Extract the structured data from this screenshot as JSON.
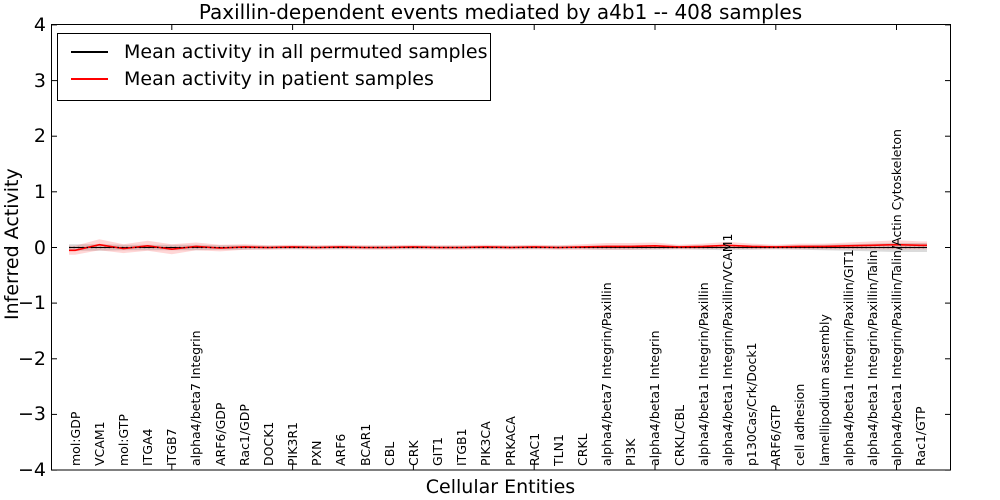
{
  "title": "Paxillin-dependent events mediated by a4b1 -- 408 samples",
  "axes": {
    "xlabel": "Cellular Entities",
    "ylabel": "Inferred Activity",
    "ytick_labels": [
      "4",
      "3",
      "2",
      "1",
      "0",
      "−1",
      "−2",
      "−3",
      "−4"
    ]
  },
  "legend": {
    "items": [
      {
        "label": "Mean activity in all permuted samples",
        "color": "#000000"
      },
      {
        "label": "Mean activity in patient samples",
        "color": "#ff0000"
      }
    ]
  },
  "chart_data": {
    "type": "line",
    "title": "Paxillin-dependent events mediated by a4b1 -- 408 samples",
    "xlabel": "Cellular Entities",
    "ylabel": "Inferred Activity",
    "ylim": [
      -4,
      4
    ],
    "yticks": [
      4,
      3,
      2,
      1,
      0,
      -1,
      -2,
      -3,
      -4
    ],
    "xtick_positions": [
      5,
      10,
      15,
      20,
      25,
      30,
      35
    ],
    "grid": false,
    "legend_position": "upper left",
    "zero_line_style": "dotted",
    "categories": [
      "mol:GDP",
      "VCAM1",
      "mol:GTP",
      "ITGA4",
      "ITGB7",
      "alpha4/beta7 Integrin",
      "ARF6/GDP",
      "Rac1/GDP",
      "DOCK1",
      "PIK3R1",
      "PXN",
      "ARF6",
      "BCAR1",
      "CBL",
      "CRK",
      "GIT1",
      "ITGB1",
      "PIK3CA",
      "PRKACA",
      "RAC1",
      "TLN1",
      "CRKL",
      "alpha4/beta7 Integrin/Paxillin",
      "PI3K",
      "alpha4/beta1 Integrin",
      "CRKL/CBL",
      "alpha4/beta1 Integrin/Paxillin",
      "alpha4/beta1 Integrin/Paxillin/VCAM1",
      "p130Cas/Crk/Dock1",
      "ARF6/GTP",
      "cell adhesion",
      "lamellipodium assembly",
      "alpha4/beta1 Integrin/Paxillin/GIT1",
      "alpha4/beta1 Integrin/Paxillin/Talin",
      "alpha4/beta1 Integrin/Paxillin/Talin/Actin Cytoskeleton",
      "Rac1/GTP"
    ],
    "series": [
      {
        "name": "Mean activity in all permuted samples",
        "color": "#000000",
        "band_color": "rgba(125,125,125,0.28)",
        "values": [
          0,
          0,
          0,
          0,
          0,
          0,
          0,
          0,
          0,
          0,
          0,
          0,
          0,
          0,
          0,
          0,
          0,
          0,
          0,
          0,
          0,
          0,
          0,
          0,
          0,
          0,
          0,
          0,
          0,
          0,
          0,
          0,
          0,
          0,
          0,
          0
        ],
        "band_halfwidth": [
          0.06,
          0.06,
          0.05,
          0.05,
          0.05,
          0.05,
          0.04,
          0.04,
          0.03,
          0.03,
          0.03,
          0.03,
          0.03,
          0.03,
          0.03,
          0.03,
          0.03,
          0.03,
          0.03,
          0.03,
          0.03,
          0.03,
          0.04,
          0.04,
          0.04,
          0.03,
          0.04,
          0.05,
          0.04,
          0.03,
          0.04,
          0.05,
          0.06,
          0.07,
          0.08,
          0.08
        ]
      },
      {
        "name": "Mean activity in patient samples",
        "color": "#ff0000",
        "band_color": "rgba(255,0,0,0.16)",
        "values": [
          -0.05,
          0.05,
          -0.02,
          0.03,
          -0.03,
          0.02,
          -0.01,
          0.01,
          0,
          0.01,
          0,
          0.01,
          0,
          0,
          0.01,
          0,
          0,
          0.01,
          0,
          0.01,
          0,
          0.01,
          0.02,
          0.02,
          0.03,
          0.01,
          0.02,
          0.04,
          0.02,
          0.01,
          0.02,
          0.02,
          0.03,
          0.04,
          0.05,
          0.04
        ],
        "band_halfwidth": [
          0.08,
          0.1,
          0.08,
          0.09,
          0.09,
          0.07,
          0.06,
          0.05,
          0.04,
          0.04,
          0.04,
          0.04,
          0.04,
          0.04,
          0.04,
          0.04,
          0.04,
          0.04,
          0.04,
          0.04,
          0.04,
          0.05,
          0.06,
          0.06,
          0.06,
          0.04,
          0.05,
          0.06,
          0.05,
          0.04,
          0.05,
          0.05,
          0.06,
          0.07,
          0.08,
          0.07
        ]
      }
    ]
  }
}
